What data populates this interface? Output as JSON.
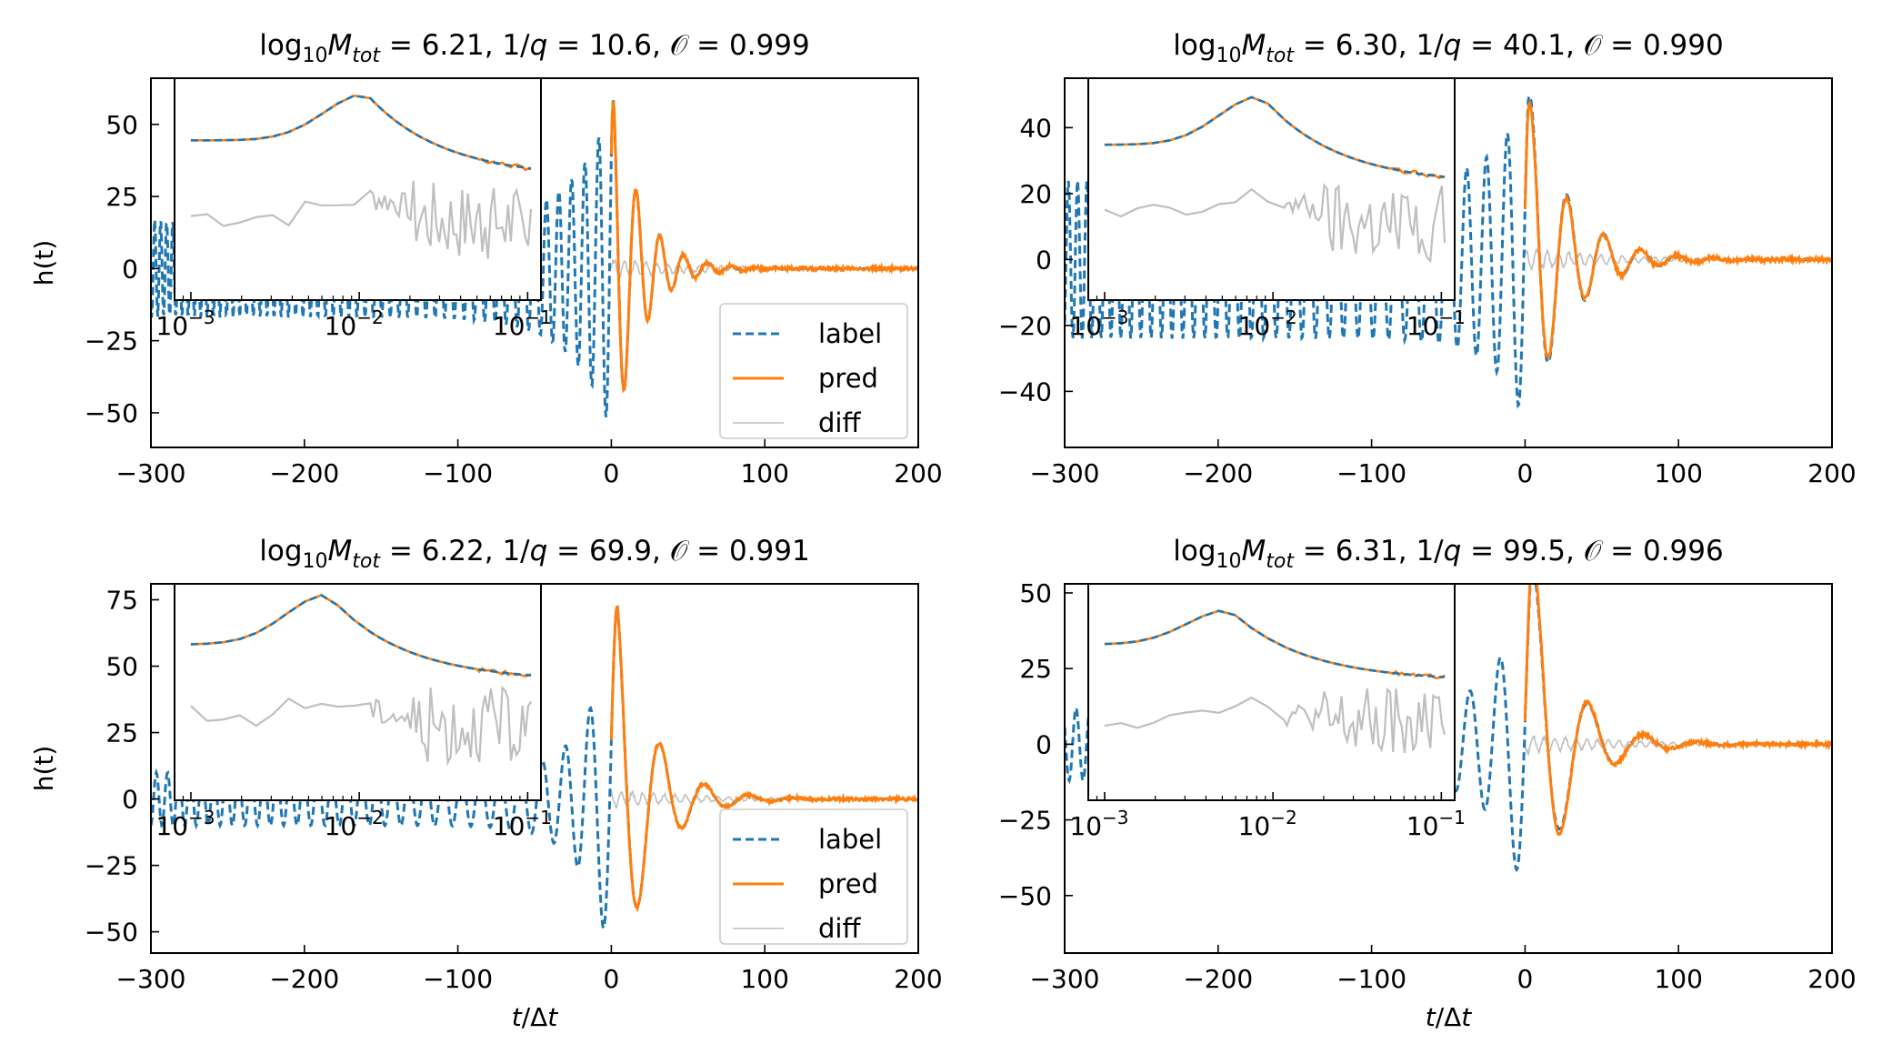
{
  "figure": {
    "xlabel_common": "t/Δt"
  },
  "colors": {
    "label": "#1f77b4",
    "pred": "#ff7f0e",
    "diff": "#bfbfbf"
  },
  "legend": {
    "label": "label",
    "pred": "pred",
    "diff": "diff"
  },
  "chart_data": [
    {
      "type": "line",
      "title": {
        "log_text": "log",
        "log_sub": "10",
        "M": "M",
        "M_sub": "tot",
        "mass": "6.21",
        "q": "10.6",
        "overlap": "0.999"
      },
      "xlabel": "",
      "ylabel": "h(t)",
      "xlim": [
        -300,
        200
      ],
      "ylim": [
        -62,
        66
      ],
      "xticks": [
        -300,
        -200,
        -100,
        0,
        100,
        200
      ],
      "yticks": [
        -50,
        -25,
        0,
        25,
        50
      ],
      "legend": true,
      "waveform": {
        "pre_amp": 17,
        "t_growth": 150,
        "peak_amp": 60,
        "t_peak": 2,
        "period": 15.5,
        "decay": 18,
        "phase_offset": 0.5,
        "pred_scale": 1.0
      },
      "inset": {
        "xscale": "log",
        "xlim": [
          0.0008,
          0.12
        ],
        "xticks": [
          0.001,
          0.01,
          0.1
        ],
        "xticklabels": [
          {
            "base": "10",
            "exp": "−3"
          },
          {
            "base": "10",
            "exp": "−2"
          },
          {
            "base": "10",
            "exp": "−1"
          }
        ],
        "peak_freq": 0.011,
        "spectrum_baseline": 0.72,
        "spectrum_peak": 0.93,
        "spectrum_tail": 0.55
      }
    },
    {
      "type": "line",
      "title": {
        "log_text": "log",
        "log_sub": "10",
        "M": "M",
        "M_sub": "tot",
        "mass": "6.30",
        "q": "40.1",
        "overlap": "0.990"
      },
      "xlabel": "",
      "ylabel": "",
      "xlim": [
        -300,
        200
      ],
      "ylim": [
        -57,
        55
      ],
      "xticks": [
        -300,
        -200,
        -100,
        0,
        100,
        200
      ],
      "yticks": [
        -40,
        -20,
        0,
        20,
        40
      ],
      "legend": false,
      "waveform": {
        "pre_amp": 24,
        "t_growth": 120,
        "peak_amp": 52,
        "t_peak": 2,
        "period": 24,
        "decay": 26,
        "phase_offset": -0.4,
        "pred_scale": 0.95
      },
      "inset": {
        "xscale": "log",
        "xlim": [
          0.0008,
          0.12
        ],
        "xticks": [
          0.001,
          0.01,
          0.1
        ],
        "xticklabels": [
          {
            "base": "10",
            "exp": "−3"
          },
          {
            "base": "10",
            "exp": "−2"
          },
          {
            "base": "10",
            "exp": "−1"
          }
        ],
        "peak_freq": 0.0085,
        "spectrum_baseline": 0.7,
        "spectrum_peak": 0.92,
        "spectrum_tail": 0.52
      }
    },
    {
      "type": "line",
      "title": {
        "log_text": "log",
        "log_sub": "10",
        "M": "M",
        "M_sub": "tot",
        "mass": "6.22",
        "q": "69.9",
        "overlap": "0.991"
      },
      "xlabel": "t/Δt",
      "ylabel": "h(t)",
      "xlim": [
        -300,
        200
      ],
      "ylim": [
        -58,
        81
      ],
      "xticks": [
        -300,
        -200,
        -100,
        0,
        100,
        200
      ],
      "yticks": [
        -50,
        -25,
        0,
        25,
        50,
        75
      ],
      "legend": true,
      "waveform": {
        "pre_amp": 10,
        "t_growth": 110,
        "peak_amp": 74,
        "t_peak": 4,
        "period": 29,
        "decay": 22,
        "phase_offset": 0.2,
        "pred_scale": 1.0
      },
      "inset": {
        "xscale": "log",
        "xlim": [
          0.0008,
          0.12
        ],
        "xticks": [
          0.001,
          0.01,
          0.1
        ],
        "xticklabels": [
          {
            "base": "10",
            "exp": "−3"
          },
          {
            "base": "10",
            "exp": "−2"
          },
          {
            "base": "10",
            "exp": "−1"
          }
        ],
        "peak_freq": 0.0065,
        "spectrum_baseline": 0.72,
        "spectrum_peak": 0.95,
        "spectrum_tail": 0.55
      }
    },
    {
      "type": "line",
      "title": {
        "log_text": "log",
        "log_sub": "10",
        "M": "M",
        "M_sub": "tot",
        "mass": "6.31",
        "q": "99.5",
        "overlap": "0.996"
      },
      "xlabel": "t/Δt",
      "ylabel": "",
      "xlim": [
        -300,
        200
      ],
      "ylim": [
        -69,
        53
      ],
      "xticks": [
        -300,
        -200,
        -100,
        0,
        100,
        200
      ],
      "yticks": [
        -50,
        -25,
        0,
        25,
        50
      ],
      "legend": false,
      "waveform": {
        "pre_amp": 12,
        "t_growth": 110,
        "peak_amp": 62,
        "t_peak": 4,
        "period": 36,
        "decay": 24,
        "phase_offset": -0.3,
        "pred_scale": 1.05
      },
      "inset": {
        "xscale": "log",
        "xlim": [
          0.0008,
          0.12
        ],
        "xticks": [
          0.001,
          0.01,
          0.1
        ],
        "xticklabels": [
          {
            "base": "10",
            "exp": "−3"
          },
          {
            "base": "10",
            "exp": "−2"
          },
          {
            "base": "10",
            "exp": "−1"
          }
        ],
        "peak_freq": 0.0055,
        "spectrum_baseline": 0.72,
        "spectrum_peak": 0.88,
        "spectrum_tail": 0.55
      }
    }
  ]
}
